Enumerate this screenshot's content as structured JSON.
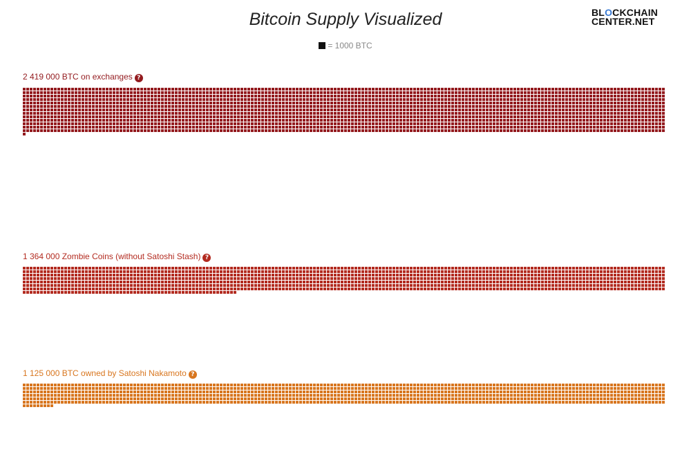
{
  "title": "Bitcoin Supply Visualized",
  "logo": {
    "line1_a": "BL",
    "line1_ring": "O",
    "line1_b": "CKCHAIN",
    "line2": "CENTER.NET"
  },
  "legend": {
    "swatch_color": "#111111",
    "text": "= 1000 BTC"
  },
  "chart_data": {
    "type": "waffle",
    "unit": 1000,
    "unit_label": "= 1000 BTC",
    "series": [
      {
        "label": "2 419 000 BTC on exchanges",
        "value": 2419000,
        "color": "#931a1e"
      },
      {
        "label": "1 364 000 Zombie Coins (without Satoshi Stash)",
        "value": 1364000,
        "color": "#b32b20"
      },
      {
        "label": "1 125 000 BTC owned by Satoshi Nakamoto",
        "value": 1125000,
        "color": "#d8761f"
      }
    ]
  }
}
